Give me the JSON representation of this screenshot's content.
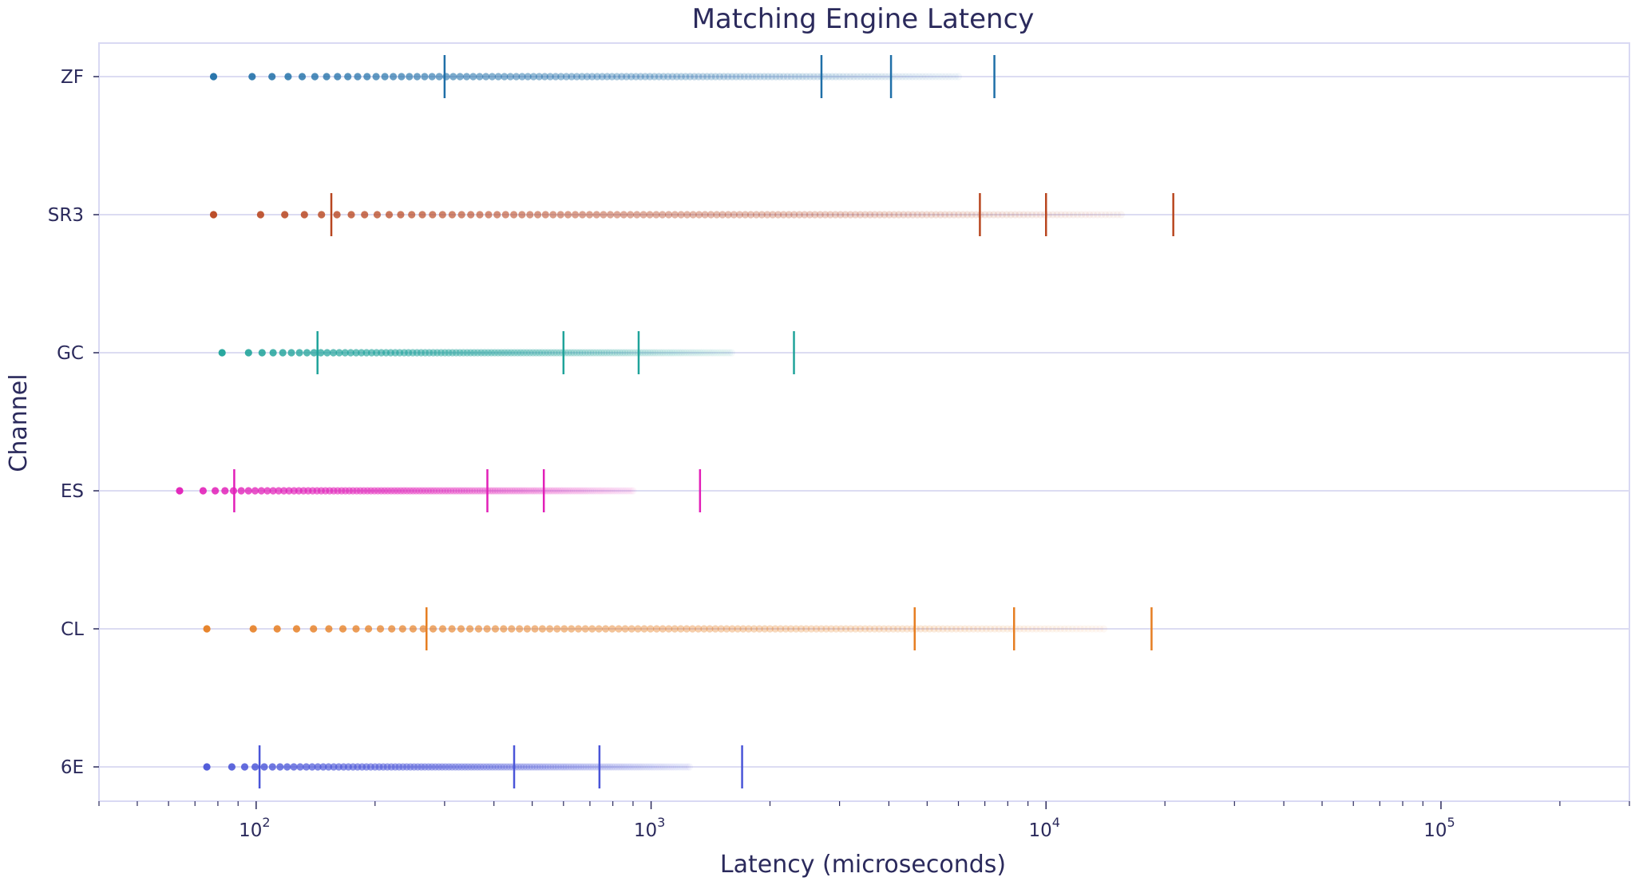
{
  "chart_data": {
    "type": "scatter",
    "title": "Matching Engine Latency",
    "xlabel": "Latency (microseconds)",
    "ylabel": "Channel",
    "xscale": "log",
    "xlim": [
      40,
      300000
    ],
    "x_ticks": [
      {
        "base": "10",
        "exp": "2",
        "value": 100
      },
      {
        "base": "10",
        "exp": "3",
        "value": 1000
      },
      {
        "base": "10",
        "exp": "4",
        "value": 10000
      },
      {
        "base": "10",
        "exp": "5",
        "value": 100000
      }
    ],
    "grid": "horizontal",
    "legend": "none",
    "series": [
      {
        "name": "ZF",
        "color": "#1f6fa8",
        "min": 78,
        "max": 6000,
        "markers": [
          300,
          2700,
          4050,
          7400
        ]
      },
      {
        "name": "SR3",
        "color": "#b8461f",
        "min": 78,
        "max": 15500,
        "markers": [
          155,
          6800,
          10000,
          21000
        ]
      },
      {
        "name": "GC",
        "color": "#1fa39a",
        "min": 82,
        "max": 1600,
        "markers": [
          143,
          600,
          930,
          2300
        ]
      },
      {
        "name": "ES",
        "color": "#e21fb8",
        "min": 64,
        "max": 900,
        "markers": [
          88,
          385,
          535,
          1330
        ]
      },
      {
        "name": "CL",
        "color": "#e67e22",
        "min": 75,
        "max": 14000,
        "markers": [
          270,
          4650,
          8300,
          18500
        ]
      },
      {
        "name": "6E",
        "color": "#4a55d8",
        "min": 75,
        "max": 1250,
        "markers": [
          102,
          450,
          740,
          1700
        ]
      }
    ]
  }
}
